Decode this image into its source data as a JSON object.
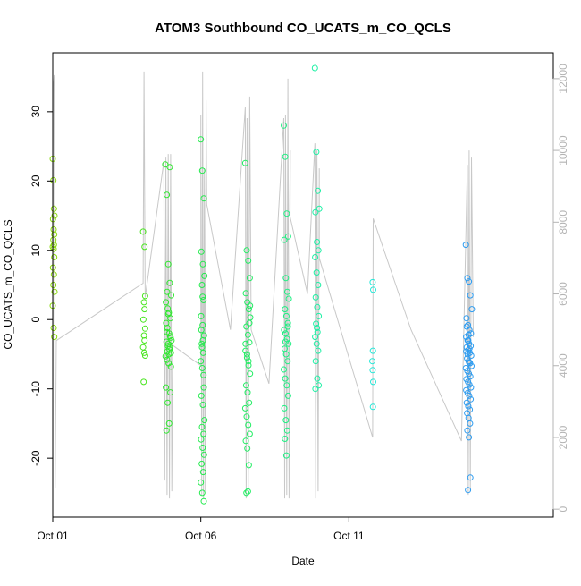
{
  "chart_data": {
    "type": "scatter",
    "title": "ATOM3 Southbound CO_UCATS_m_CO_QCLS",
    "xlabel": "Date",
    "ylabel": "CO_UCATS_m_CO_QCLS",
    "xlim": [
      0.0,
      16.9
    ],
    "ylim": [
      -28.5,
      38.5
    ],
    "y2lim": [
      -220,
      12720
    ],
    "x_ticks": [
      {
        "value": 0,
        "label": "Oct 01"
      },
      {
        "value": 5,
        "label": "Oct 06"
      },
      {
        "value": 10,
        "label": "Oct 11"
      }
    ],
    "y_ticks": [
      {
        "value": -20,
        "label": "-20"
      },
      {
        "value": -10,
        "label": "-10"
      },
      {
        "value": 0,
        "label": "0"
      },
      {
        "value": 10,
        "label": "10"
      },
      {
        "value": 20,
        "label": "20"
      },
      {
        "value": 30,
        "label": "30"
      }
    ],
    "y2_ticks": [
      {
        "value": 0,
        "label": "0"
      },
      {
        "value": 2000,
        "label": "2000"
      },
      {
        "value": 4000,
        "label": "4000"
      },
      {
        "value": 6000,
        "label": "6000"
      },
      {
        "value": 8000,
        "label": "8000"
      },
      {
        "value": 10000,
        "label": "10000"
      },
      {
        "value": 12000,
        "label": "12000"
      }
    ],
    "altitude_trace": [
      [
        0.0,
        500
      ],
      [
        0.02,
        11800
      ],
      [
        0.05,
        12100
      ],
      [
        0.08,
        600
      ],
      [
        0.12,
        4700
      ],
      [
        3.05,
        6300
      ],
      [
        3.08,
        12200
      ],
      [
        3.12,
        5900
      ],
      [
        3.75,
        9700
      ],
      [
        3.78,
        800
      ],
      [
        3.82,
        9800
      ],
      [
        3.86,
        400
      ],
      [
        3.9,
        9900
      ],
      [
        3.94,
        300
      ],
      [
        3.98,
        9900
      ],
      [
        4.02,
        500
      ],
      [
        4.05,
        4600
      ],
      [
        4.0,
        4600
      ],
      [
        5.0,
        4000
      ],
      [
        5.0,
        11000
      ],
      [
        5.03,
        400
      ],
      [
        5.06,
        12200
      ],
      [
        5.09,
        300
      ],
      [
        5.12,
        9500
      ],
      [
        5.15,
        500
      ],
      [
        5.18,
        11400
      ],
      [
        5.2,
        8500
      ],
      [
        6.0,
        5000
      ],
      [
        6.5,
        11200
      ],
      [
        6.53,
        300
      ],
      [
        6.56,
        10900
      ],
      [
        6.6,
        400
      ],
      [
        6.65,
        11500
      ],
      [
        6.7,
        5000
      ],
      [
        6.7,
        5000
      ],
      [
        7.3,
        3500
      ],
      [
        7.8,
        10900
      ],
      [
        7.83,
        300
      ],
      [
        7.86,
        11000
      ],
      [
        7.9,
        400
      ],
      [
        7.94,
        12000
      ],
      [
        7.98,
        300
      ],
      [
        8.02,
        10000
      ],
      [
        8.0,
        8200
      ],
      [
        8.6,
        6000
      ],
      [
        8.85,
        10200
      ],
      [
        8.88,
        300
      ],
      [
        8.92,
        10000
      ],
      [
        8.96,
        500
      ],
      [
        9.0,
        9500
      ],
      [
        9.0,
        7000
      ],
      [
        10.8,
        2000
      ],
      [
        10.82,
        8100
      ],
      [
        12.1,
        5000
      ],
      [
        13.8,
        1900
      ],
      [
        14.0,
        9600
      ],
      [
        14.03,
        400
      ],
      [
        14.06,
        10000
      ],
      [
        14.1,
        500
      ],
      [
        14.14,
        9800
      ],
      [
        14.2,
        4800
      ]
    ],
    "series": [
      {
        "color": "#8ad90c",
        "x": [
          0.0,
          0.02,
          0.04,
          0.06,
          0.01,
          0.03,
          0.05,
          0.02,
          0.04,
          0.0,
          0.03,
          0.05,
          0.01,
          0.04,
          0.02,
          0.06,
          0.0,
          0.03,
          0.05
        ],
        "y": [
          23.2,
          20.1,
          16.0,
          15.0,
          14.5,
          13.0,
          12.3,
          11.5,
          10.8,
          10.5,
          10.2,
          9.0,
          7.5,
          6.5,
          5.0,
          4.0,
          2.0,
          -1.2,
          -2.5
        ]
      },
      {
        "color": "#48e51e",
        "x": [
          3.05,
          3.1,
          3.12,
          3.08,
          3.1,
          3.06,
          3.12,
          3.08,
          3.1,
          3.05,
          3.12,
          3.09,
          3.07
        ],
        "y": [
          12.7,
          10.5,
          3.4,
          2.5,
          1.5,
          0.0,
          -1.3,
          -2.3,
          -3.0,
          -4.0,
          -5.2,
          -4.8,
          -9.0
        ]
      },
      {
        "color": "#2ee82e",
        "x": [
          3.8,
          3.85,
          3.9,
          3.95,
          4.0,
          3.82,
          3.88,
          3.92,
          3.97,
          3.83,
          3.87,
          3.93,
          3.98,
          3.84,
          3.89,
          3.94,
          3.99,
          3.81,
          3.86,
          3.91,
          3.96,
          4.01,
          3.85,
          3.9,
          3.95,
          3.87,
          3.92,
          3.82,
          3.97,
          3.88,
          3.93,
          3.84,
          3.99,
          3.9,
          3.86,
          3.95
        ],
        "y": [
          22.4,
          18.0,
          8.0,
          5.3,
          3.5,
          2.5,
          1.6,
          1.0,
          0.2,
          -0.5,
          -1.2,
          -2.0,
          -2.6,
          -3.2,
          -3.8,
          -4.3,
          -4.8,
          -5.3,
          -5.8,
          -6.3,
          -2.4,
          -3.0,
          -1.8,
          -3.5,
          -4.0,
          -4.6,
          -5.0,
          -9.8,
          -10.5,
          -12.0,
          -15.0,
          -16.0,
          -6.8,
          0.8,
          4.0,
          22.0
        ]
      },
      {
        "color": "#22eb4c",
        "x": [
          5.0,
          5.05,
          5.1,
          5.02,
          5.07,
          5.12,
          5.04,
          5.09,
          5.01,
          5.06,
          5.11,
          5.03,
          5.08,
          5.0,
          5.05,
          5.1,
          5.02,
          5.07,
          5.12,
          5.04,
          5.09,
          5.01,
          5.06,
          5.11,
          5.03,
          5.08,
          5.0,
          5.05,
          5.1,
          5.02,
          5.07,
          5.04,
          5.09,
          5.06
        ],
        "y": [
          26.0,
          21.5,
          17.5,
          9.8,
          8.0,
          6.3,
          5.0,
          2.8,
          0.5,
          -0.8,
          -2.3,
          -3.5,
          -4.8,
          -6.0,
          -7.0,
          -9.8,
          -11.0,
          -12.3,
          -14.5,
          -15.5,
          -16.5,
          -17.3,
          -18.5,
          -19.5,
          -20.8,
          -22.0,
          -23.5,
          -25.0,
          -26.2,
          -1.5,
          -3.0,
          -4.0,
          -8.0,
          3.3
        ]
      },
      {
        "color": "#20ed62",
        "x": [
          6.5,
          6.55,
          6.6,
          6.65,
          6.52,
          6.57,
          6.62,
          6.67,
          6.54,
          6.59,
          6.64,
          6.51,
          6.56,
          6.61,
          6.66,
          6.53,
          6.58,
          6.63,
          6.5,
          6.55,
          6.6,
          6.65,
          6.52,
          6.57,
          6.62,
          6.54,
          6.59,
          6.64,
          6.51,
          6.56,
          6.61,
          6.66
        ],
        "y": [
          22.6,
          10.0,
          8.5,
          6.0,
          3.8,
          2.5,
          1.5,
          0.3,
          -1.0,
          -2.2,
          -3.3,
          -4.5,
          -5.5,
          -6.6,
          -7.8,
          -9.5,
          -10.5,
          -12.0,
          -12.8,
          -14.0,
          -15.2,
          -16.5,
          -17.5,
          -18.6,
          -21.0,
          -25.0,
          -24.8,
          -0.5,
          -3.5,
          -5.0,
          -6.0,
          2.0
        ]
      },
      {
        "color": "#1eef82",
        "x": [
          7.8,
          7.85,
          7.9,
          7.95,
          7.82,
          7.87,
          7.92,
          7.97,
          7.84,
          7.89,
          7.94,
          7.81,
          7.86,
          7.91,
          7.96,
          7.83,
          7.88,
          7.93,
          7.8,
          7.85,
          7.9,
          7.95,
          7.82,
          7.87,
          7.92,
          7.84,
          7.89,
          7.94,
          7.86
        ],
        "y": [
          28.0,
          23.5,
          15.3,
          12.0,
          11.5,
          6.0,
          4.0,
          3.0,
          1.5,
          0.5,
          -0.5,
          -1.5,
          -2.0,
          -2.8,
          -3.5,
          -4.2,
          -5.0,
          -6.0,
          -7.2,
          -8.5,
          -9.5,
          -11.0,
          -12.8,
          -14.5,
          -16.0,
          -17.2,
          -19.6,
          -1.0,
          -3.2
        ]
      },
      {
        "color": "#1cf0a4",
        "x": [
          8.85,
          8.9,
          8.95,
          9.0,
          8.87,
          8.92,
          8.97,
          8.86,
          8.91,
          8.96,
          8.88,
          8.93,
          8.98,
          8.89,
          8.94,
          8.86,
          8.91,
          8.96,
          8.88,
          8.93,
          8.98,
          8.87,
          8.92
        ],
        "y": [
          36.3,
          24.2,
          18.6,
          16.0,
          15.5,
          11.2,
          10.0,
          9.0,
          6.8,
          5.0,
          3.2,
          1.8,
          0.5,
          -0.6,
          -1.8,
          -2.5,
          -3.5,
          -4.5,
          -6.0,
          -8.5,
          -9.5,
          -10.0,
          -1.2
        ]
      },
      {
        "color": "#22e8d8",
        "x": [
          10.8,
          10.82,
          10.81,
          10.79,
          10.8,
          10.82,
          10.81
        ],
        "y": [
          5.4,
          4.3,
          -4.5,
          -6.0,
          -7.3,
          -9.0,
          -12.6
        ]
      },
      {
        "color": "#2e9cf0",
        "x": [
          13.95,
          14.0,
          14.05,
          14.1,
          14.15,
          13.97,
          14.02,
          14.07,
          14.12,
          13.96,
          14.01,
          14.06,
          14.11,
          13.98,
          14.03,
          14.08,
          14.13,
          13.99,
          14.04,
          14.09,
          14.14,
          13.95,
          14.0,
          14.05,
          14.1,
          13.97,
          14.02,
          14.07,
          14.12,
          13.96,
          14.01,
          14.06,
          14.11,
          13.98,
          14.03,
          14.08,
          13.99,
          14.04,
          14.09,
          14.0,
          14.05,
          14.1,
          14.02,
          14.07,
          14.01,
          14.06,
          14.03,
          13.98,
          14.04,
          13.96
        ],
        "y": [
          10.8,
          6.0,
          5.5,
          3.5,
          1.5,
          0.2,
          -0.8,
          -1.5,
          -2.0,
          -2.5,
          -3.0,
          -3.5,
          -3.8,
          -4.0,
          -4.4,
          -4.8,
          -5.2,
          -5.6,
          -6.0,
          -6.3,
          -6.7,
          -7.0,
          -7.4,
          -7.8,
          -8.2,
          -8.6,
          -9.0,
          -9.4,
          -9.8,
          -10.2,
          -10.6,
          -11.0,
          -11.5,
          -12.0,
          -12.5,
          -13.0,
          -13.5,
          -14.2,
          -15.0,
          -16.0,
          -17.0,
          -22.8,
          -24.6,
          -4.2,
          -5.0,
          -6.2,
          -3.0,
          -1.0,
          -2.2,
          -4.6
        ]
      }
    ]
  }
}
